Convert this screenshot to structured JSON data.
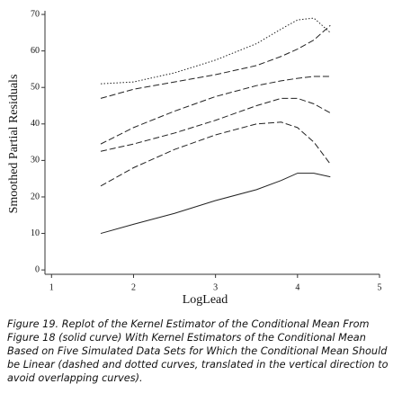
{
  "chart_data": {
    "type": "line",
    "xlabel": "LogLead",
    "ylabel": "Smoothed Partial Residuals",
    "caption": "Figure 19.  Replot of the Kernel Estimator of the Conditional Mean From Figure 18 (solid curve) With Kernel Estimators of the Conditional Mean Based on Five Simulated Data Sets for Which the Conditional Mean Should be Linear (dashed and dotted curves, translated in the vertical direction to avoid overlapping curves).",
    "x": [
      1.6,
      2.0,
      2.5,
      3.0,
      3.5,
      3.8,
      4.0,
      4.2,
      4.4
    ],
    "series": [
      {
        "color": "#222222",
        "dash": "solid",
        "values": [
          10,
          12.5,
          15.5,
          19,
          22,
          24.5,
          26.5,
          26.5,
          25.5
        ]
      },
      {
        "color": "#222222",
        "dash": "dashed",
        "values": [
          23,
          28,
          33,
          37,
          40,
          40.5,
          39,
          35,
          29
        ]
      },
      {
        "color": "#222222",
        "dash": "dashed",
        "values": [
          32.5,
          34.5,
          37.5,
          41,
          45,
          47,
          47,
          45.5,
          43
        ]
      },
      {
        "color": "#222222",
        "dash": "dashed",
        "values": [
          34.5,
          39,
          43.5,
          47.5,
          50.5,
          51.8,
          52.5,
          53,
          53
        ]
      },
      {
        "color": "#222222",
        "dash": "dashed",
        "values": [
          47,
          49.5,
          51.5,
          53.5,
          56,
          58.5,
          60.5,
          63,
          67
        ]
      },
      {
        "color": "#222222",
        "dash": "dotted",
        "values": [
          51,
          51.5,
          54,
          57.5,
          62,
          66,
          68.5,
          69,
          65
        ]
      }
    ],
    "xlim": [
      0.92,
      5.0
    ],
    "ylim": [
      -1.2,
      71
    ],
    "xticks": [
      1,
      2,
      3,
      4,
      5
    ],
    "yticks": [
      0,
      10,
      20,
      30,
      40,
      50,
      60,
      70
    ]
  }
}
